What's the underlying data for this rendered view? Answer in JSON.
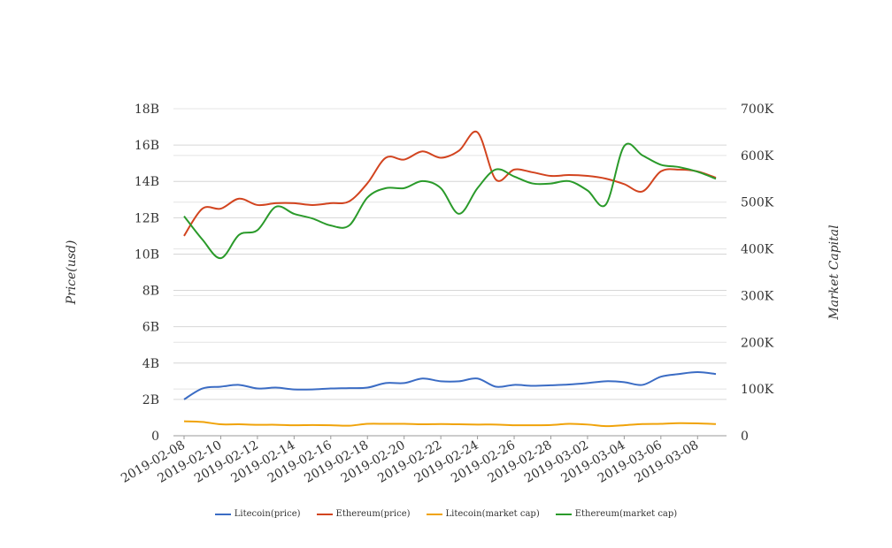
{
  "chart_data": {
    "type": "line",
    "title": "",
    "ylabel_left": "Price(usd)",
    "ylabel_right": "Market Capital",
    "x": [
      "2019-02-08",
      "2019-02-09",
      "2019-02-10",
      "2019-02-11",
      "2019-02-12",
      "2019-02-13",
      "2019-02-14",
      "2019-02-15",
      "2019-02-16",
      "2019-02-17",
      "2019-02-18",
      "2019-02-19",
      "2019-02-20",
      "2019-02-21",
      "2019-02-22",
      "2019-02-23",
      "2019-02-24",
      "2019-02-25",
      "2019-02-26",
      "2019-02-27",
      "2019-02-28",
      "2019-03-01",
      "2019-03-02",
      "2019-03-03",
      "2019-03-04",
      "2019-03-05",
      "2019-03-06",
      "2019-03-07",
      "2019-03-08",
      "2019-03-09"
    ],
    "x_ticks": [
      "2019-02-08",
      "2019-02-10",
      "2019-02-12",
      "2019-02-14",
      "2019-02-16",
      "2019-02-18",
      "2019-02-20",
      "2019-02-22",
      "2019-02-24",
      "2019-02-26",
      "2019-02-28",
      "2019-03-02",
      "2019-03-04",
      "2019-03-06",
      "2019-03-08"
    ],
    "y_left": {
      "ylim": [
        0,
        18000000000
      ],
      "ticks": [
        0,
        2000000000,
        4000000000,
        6000000000,
        8000000000,
        10000000000,
        12000000000,
        14000000000,
        16000000000,
        18000000000
      ],
      "tick_labels": [
        "0",
        "2B",
        "4B",
        "6B",
        "8B",
        "10B",
        "12B",
        "14B",
        "16B",
        "18B"
      ]
    },
    "y_right": {
      "ylim": [
        0,
        700000
      ],
      "ticks": [
        0,
        100000,
        200000,
        300000,
        400000,
        500000,
        600000,
        700000
      ],
      "tick_labels": [
        "0",
        "100K",
        "200K",
        "300K",
        "400K",
        "500K",
        "600K",
        "700K"
      ]
    },
    "grid": true,
    "legend_position": "bottom",
    "series": [
      {
        "name": "Litecoin(price)",
        "axis": "left",
        "color": "#3b6cc4",
        "values": [
          2000000000,
          2600000000,
          2700000000,
          2800000000,
          2600000000,
          2650000000,
          2550000000,
          2550000000,
          2600000000,
          2620000000,
          2650000000,
          2900000000,
          2900000000,
          3150000000,
          3000000000,
          3000000000,
          3150000000,
          2700000000,
          2800000000,
          2750000000,
          2780000000,
          2820000000,
          2900000000,
          3000000000,
          2950000000,
          2800000000,
          3250000000,
          3400000000,
          3500000000,
          3400000000
        ]
      },
      {
        "name": "Ethereum(price)",
        "axis": "left",
        "color": "#d2441f",
        "values": [
          11000000000,
          12500000000,
          12500000000,
          13050000000,
          12700000000,
          12800000000,
          12800000000,
          12700000000,
          12800000000,
          12900000000,
          13900000000,
          15300000000,
          15200000000,
          15650000000,
          15300000000,
          15700000000,
          16700000000,
          14100000000,
          14650000000,
          14500000000,
          14300000000,
          14350000000,
          14300000000,
          14150000000,
          13850000000,
          13450000000,
          14550000000,
          14650000000,
          14550000000,
          14200000000
        ]
      },
      {
        "name": "Litecoin(market cap)",
        "axis": "right",
        "color": "#f0a30a",
        "values": [
          31000,
          29500,
          24500,
          24500,
          23500,
          23500,
          22500,
          23000,
          22500,
          21500,
          25500,
          25500,
          25500,
          24500,
          25000,
          24500,
          24000,
          24000,
          22500,
          22500,
          23000,
          25500,
          24000,
          20500,
          22500,
          25000,
          25500,
          27000,
          26500,
          25000
        ]
      },
      {
        "name": "Ethereum(market cap)",
        "axis": "right",
        "color": "#2a9a2a",
        "values": [
          470000,
          420000,
          380000,
          430000,
          440000,
          490000,
          475000,
          465000,
          450000,
          450000,
          510000,
          530000,
          530000,
          545000,
          530000,
          475000,
          530000,
          570000,
          555000,
          540000,
          540000,
          545000,
          525000,
          495000,
          620000,
          600000,
          580000,
          575000,
          565000,
          550000
        ]
      }
    ]
  }
}
